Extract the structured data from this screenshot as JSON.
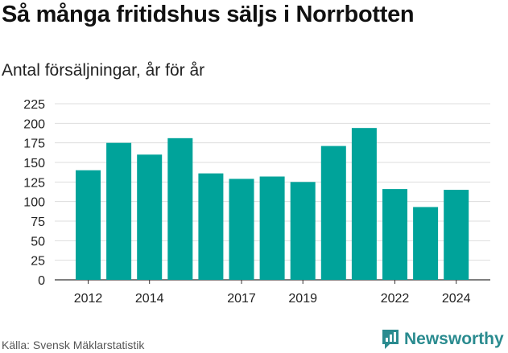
{
  "header": {
    "title": "Så många fritidshus säljs i Norrbotten",
    "subtitle": "Antal försäljningar, år för år"
  },
  "footer": {
    "source": "Källa: Svensk Mäklarstatistik",
    "brand": "Newsworthy",
    "brand_icon": "newsworthy-logo-icon"
  },
  "colors": {
    "bar": "#00a39a",
    "grid": "#dddddd",
    "axis": "#333333",
    "brand": "#2a8b8f"
  },
  "chart_data": {
    "type": "bar",
    "categories": [
      "2012",
      "2013",
      "2014",
      "2015",
      "2016",
      "2017",
      "2018",
      "2019",
      "2020",
      "2021",
      "2022",
      "2023",
      "2024"
    ],
    "values": [
      140,
      175,
      160,
      181,
      136,
      129,
      132,
      125,
      171,
      194,
      116,
      93,
      115
    ],
    "x_tick_labels": [
      "2012",
      "",
      "2014",
      "",
      "",
      "2017",
      "",
      "2019",
      "",
      "",
      "2022",
      "",
      "2024"
    ],
    "y_ticks": [
      0,
      25,
      50,
      75,
      100,
      125,
      150,
      175,
      200,
      225
    ],
    "ylim": [
      0,
      225
    ],
    "grid": true,
    "legend": "none"
  }
}
